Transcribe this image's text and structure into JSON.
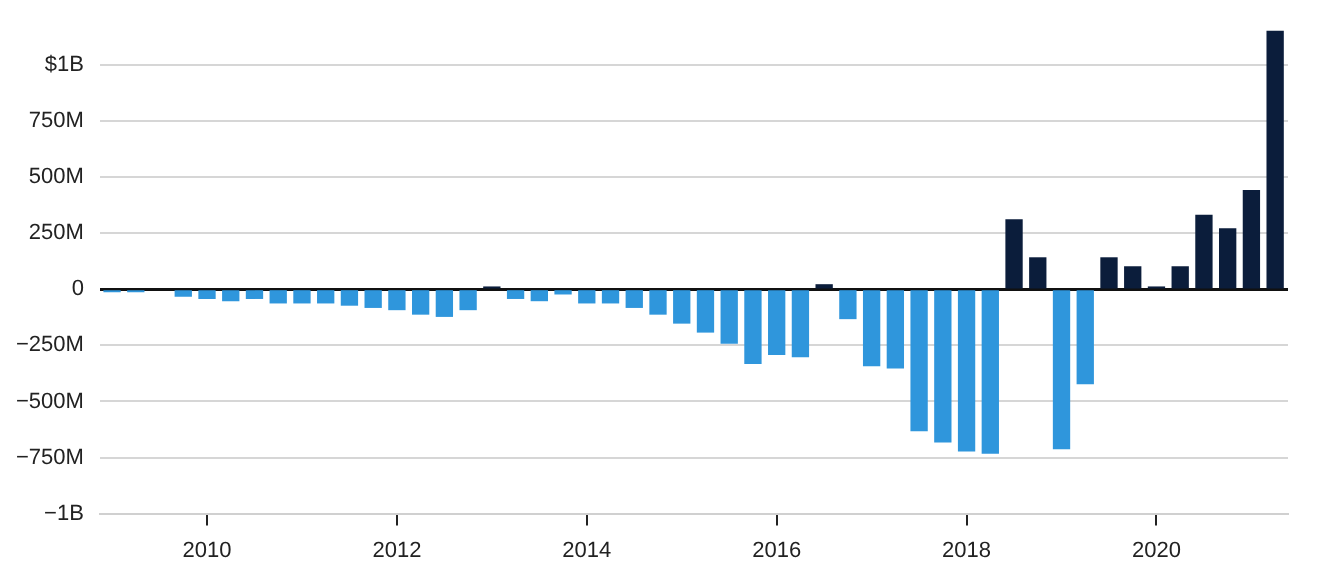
{
  "chart_data": {
    "type": "bar",
    "x": [
      "2009-01",
      "2009-04",
      "2009-07",
      "2009-10",
      "2010-01",
      "2010-04",
      "2010-07",
      "2010-10",
      "2011-01",
      "2011-04",
      "2011-07",
      "2011-10",
      "2012-01",
      "2012-04",
      "2012-07",
      "2012-10",
      "2013-01",
      "2013-04",
      "2013-07",
      "2013-10",
      "2014-01",
      "2014-04",
      "2014-07",
      "2014-10",
      "2015-01",
      "2015-04",
      "2015-07",
      "2015-10",
      "2016-01",
      "2016-04",
      "2016-07",
      "2016-10",
      "2017-01",
      "2017-04",
      "2017-07",
      "2017-10",
      "2018-01",
      "2018-04",
      "2018-07",
      "2018-10",
      "2019-01",
      "2019-04",
      "2019-07",
      "2019-10",
      "2020-01",
      "2020-04",
      "2020-07",
      "2020-10",
      "2021-01",
      "2021-04"
    ],
    "values": [
      -10000000,
      -10000000,
      null,
      -30000000,
      -40000000,
      -50000000,
      -40000000,
      -60000000,
      -60000000,
      -60000000,
      -70000000,
      -80000000,
      -90000000,
      -110000000,
      -120000000,
      -90000000,
      10000000,
      -40000000,
      -50000000,
      -20000000,
      -60000000,
      -60000000,
      -80000000,
      -110000000,
      -150000000,
      -190000000,
      -240000000,
      -330000000,
      -290000000,
      -300000000,
      20000000,
      -130000000,
      -340000000,
      -350000000,
      -630000000,
      -680000000,
      -720000000,
      -730000000,
      310000000,
      140000000,
      -710000000,
      -420000000,
      140000000,
      100000000,
      10000000,
      100000000,
      330000000,
      270000000,
      440000000,
      1150000000
    ],
    "colors": [
      "#2f96dc",
      "#2f96dc",
      "#2f96dc",
      "#2f96dc",
      "#2f96dc",
      "#2f96dc",
      "#2f96dc",
      "#2f96dc",
      "#2f96dc",
      "#2f96dc",
      "#2f96dc",
      "#2f96dc",
      "#2f96dc",
      "#2f96dc",
      "#2f96dc",
      "#2f96dc",
      "#0b1d3b",
      "#2f96dc",
      "#2f96dc",
      "#2f96dc",
      "#2f96dc",
      "#2f96dc",
      "#2f96dc",
      "#2f96dc",
      "#2f96dc",
      "#2f96dc",
      "#2f96dc",
      "#2f96dc",
      "#2f96dc",
      "#2f96dc",
      "#0b1d3b",
      "#2f96dc",
      "#2f96dc",
      "#2f96dc",
      "#2f96dc",
      "#2f96dc",
      "#2f96dc",
      "#2f96dc",
      "#0b1d3b",
      "#0b1d3b",
      "#2f96dc",
      "#2f96dc",
      "#0b1d3b",
      "#0b1d3b",
      "#0b1d3b",
      "#0b1d3b",
      "#0b1d3b",
      "#0b1d3b",
      "#0b1d3b",
      "#0b1d3b"
    ],
    "xlim": [
      "2008-11-15",
      "2021-05-20"
    ],
    "xticks": [
      "2010",
      "2012",
      "2014",
      "2016",
      "2018",
      "2020"
    ],
    "ylim": [
      -1000000000,
      1160000000
    ],
    "yticks": [
      {
        "value": -1000000000,
        "label": "−1B"
      },
      {
        "value": -750000000,
        "label": "−750M"
      },
      {
        "value": -500000000,
        "label": "−500M"
      },
      {
        "value": -250000000,
        "label": "−250M"
      },
      0,
      {
        "value": 250000000,
        "label": "250M"
      },
      {
        "value": 500000000,
        "label": "500M"
      },
      {
        "value": 750000000,
        "label": "750M"
      },
      {
        "value": 1000000000,
        "label": "$1B"
      }
    ],
    "grid": "y",
    "legend": false
  }
}
